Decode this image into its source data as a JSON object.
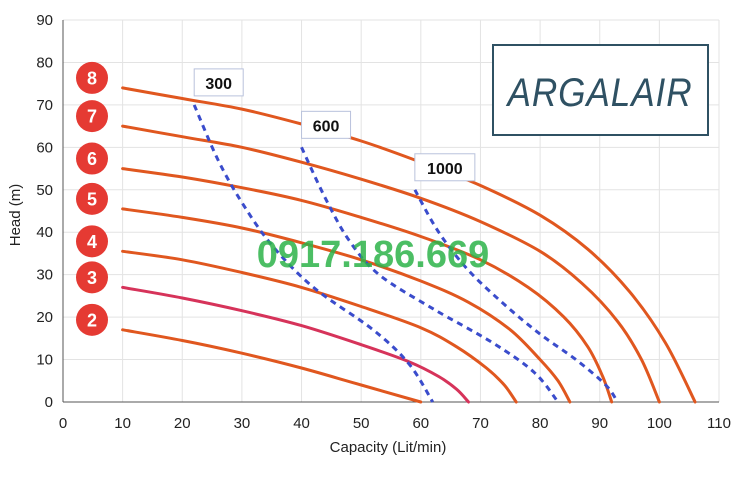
{
  "chart_data": {
    "type": "line",
    "title": "",
    "xlabel": "Capacity (Lit/min)",
    "ylabel": "Head (m)",
    "xlim": [
      0,
      110
    ],
    "ylim": [
      0,
      90
    ],
    "xticks": [
      0,
      10,
      20,
      30,
      40,
      50,
      60,
      70,
      80,
      90,
      100,
      110
    ],
    "yticks": [
      0,
      10,
      20,
      30,
      40,
      50,
      60,
      70,
      80,
      90
    ],
    "grid": true,
    "series": [
      {
        "name": "2",
        "color": "#e0571f",
        "x": [
          10,
          20,
          30,
          40,
          50,
          60
        ],
        "y": [
          17,
          14.5,
          11.5,
          8,
          4,
          0
        ]
      },
      {
        "name": "3",
        "color": "#d6335a",
        "x": [
          10,
          20,
          30,
          40,
          50,
          58,
          63,
          66,
          68
        ],
        "y": [
          27,
          24.5,
          21.5,
          18,
          13.5,
          9.5,
          6,
          3,
          0
        ]
      },
      {
        "name": "4",
        "color": "#e0571f",
        "x": [
          10,
          20,
          30,
          40,
          50,
          60,
          66,
          71,
          74,
          76
        ],
        "y": [
          35.5,
          33.5,
          30.5,
          27,
          22.5,
          17.5,
          13,
          8,
          4,
          0
        ]
      },
      {
        "name": "5",
        "color": "#e0571f",
        "x": [
          10,
          20,
          30,
          40,
          50,
          60,
          68,
          75,
          80,
          83,
          85
        ],
        "y": [
          45.5,
          43.5,
          41,
          37.5,
          33.5,
          28.5,
          23.5,
          17,
          10,
          5,
          0
        ]
      },
      {
        "name": "6",
        "color": "#e0571f",
        "x": [
          10,
          20,
          30,
          40,
          50,
          60,
          70,
          78,
          84,
          88,
          90.5,
          92
        ],
        "y": [
          55,
          53,
          50.5,
          47.5,
          43.5,
          39,
          33.5,
          27,
          20,
          13,
          6,
          0
        ]
      },
      {
        "name": "7",
        "color": "#e0571f",
        "x": [
          10,
          20,
          30,
          40,
          50,
          60,
          70,
          80,
          87,
          93,
          97,
          100
        ],
        "y": [
          65,
          62.5,
          60,
          56.5,
          52.5,
          48,
          42.5,
          35.5,
          28,
          19,
          10,
          0
        ]
      },
      {
        "name": "8",
        "color": "#e0571f",
        "x": [
          10,
          20,
          30,
          40,
          50,
          60,
          70,
          80,
          88,
          95,
          101,
          106
        ],
        "y": [
          74,
          71.5,
          69,
          65.5,
          61.5,
          56.5,
          51,
          44,
          36,
          26,
          14,
          0
        ]
      }
    ],
    "speed_lines": [
      {
        "label": "300",
        "color": "#3a4ccc",
        "x": [
          22,
          26,
          30,
          35,
          42,
          52,
          58,
          62
        ],
        "y": [
          70,
          57,
          47,
          37,
          27,
          17,
          9,
          0
        ]
      },
      {
        "label": "600",
        "color": "#3a4ccc",
        "x": [
          40,
          44,
          48,
          53,
          62,
          72,
          79,
          83
        ],
        "y": [
          60,
          48,
          38,
          30,
          22,
          14,
          7,
          0
        ]
      },
      {
        "label": "1000",
        "color": "#3a4ccc",
        "x": [
          59,
          63,
          68,
          74,
          80,
          86,
          91,
          93
        ],
        "y": [
          50,
          40,
          31,
          23,
          16,
          10,
          4,
          0
        ]
      }
    ]
  },
  "watermark": "0917.186.669",
  "logo": {
    "text": "ARGALAIR",
    "color": "#2f5163"
  }
}
